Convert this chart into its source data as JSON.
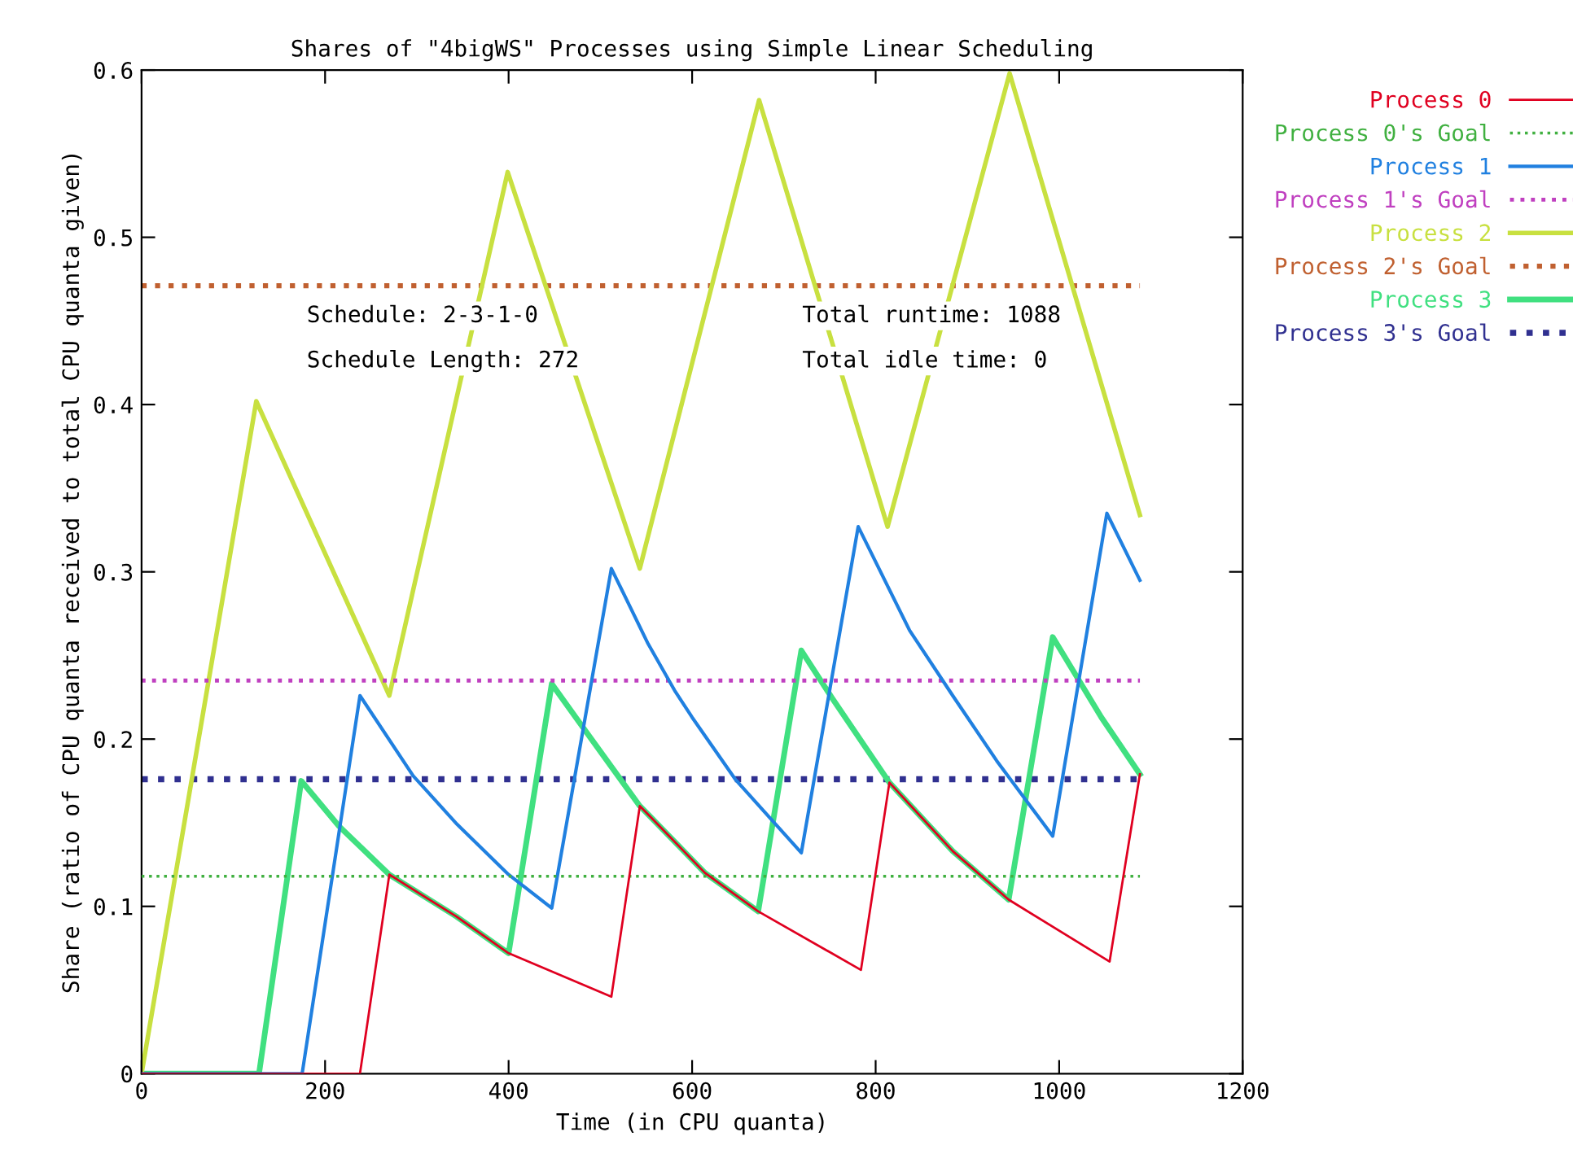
{
  "chart_data": {
    "type": "line",
    "title": "Shares of \"4bigWS\" Processes using Simple Linear Scheduling",
    "xlabel": "Time (in CPU quanta)",
    "ylabel": "Share (ratio of CPU quanta received to total CPU quanta given)",
    "xlim": [
      0,
      1200
    ],
    "xticks": [
      0,
      200,
      400,
      600,
      800,
      1000,
      1200
    ],
    "ylim": [
      0,
      0.6
    ],
    "yticks": [
      0,
      0.1,
      0.2,
      0.3,
      0.4,
      0.5,
      0.6
    ],
    "grid": false,
    "legend": "top right",
    "annotations": [
      "Schedule: 2-3-1-0",
      "Schedule Length: 272",
      "Total runtime: 1088",
      "Total idle time: 0"
    ],
    "series": [
      {
        "name": "Process 0",
        "color": "#e00020",
        "line_style": "solid",
        "x": [
          0,
          238,
          270,
          343,
          400,
          512,
          543,
          552,
          614,
          672,
          784,
          815,
          884,
          945,
          1055,
          1088
        ],
        "values": [
          0,
          0,
          0.119,
          0.094,
          0.072,
          0.046,
          0.16,
          0.155,
          0.12,
          0.097,
          0.062,
          0.174,
          0.133,
          0.104,
          0.067,
          0.179
        ]
      },
      {
        "name": "Process 0's Goal",
        "color": "#40b040",
        "line_style": "dotted",
        "x": [
          0,
          1088
        ],
        "values": [
          0.118,
          0.118
        ]
      },
      {
        "name": "Process 1",
        "color": "#2080e0",
        "line_style": "solid",
        "x": [
          0,
          175,
          238,
          296,
          344,
          400,
          447,
          512,
          552,
          581,
          600,
          647,
          719,
          781,
          837,
          884,
          932,
          993,
          1052,
          1088
        ],
        "values": [
          0,
          0,
          0.226,
          0.178,
          0.149,
          0.119,
          0.099,
          0.302,
          0.257,
          0.229,
          0.213,
          0.176,
          0.132,
          0.327,
          0.265,
          0.226,
          0.187,
          0.142,
          0.335,
          0.295
        ]
      },
      {
        "name": "Process 1's Goal",
        "color": "#c040c0",
        "line_style": "dotted",
        "x": [
          0,
          1088
        ],
        "values": [
          0.235,
          0.235
        ]
      },
      {
        "name": "Process 2",
        "color": "#c8e040",
        "line_style": "solid",
        "x": [
          0,
          125,
          270,
          399,
          543,
          673,
          813,
          946,
          1088
        ],
        "values": [
          0,
          0.402,
          0.226,
          0.539,
          0.302,
          0.582,
          0.327,
          0.598,
          0.334
        ]
      },
      {
        "name": "Process 2's Goal",
        "color": "#c06030",
        "line_style": "dotted",
        "x": [
          0,
          1088
        ],
        "values": [
          0.471,
          0.471
        ]
      },
      {
        "name": "Process 3",
        "color": "#40e080",
        "line_style": "solid",
        "x": [
          0,
          128,
          174,
          215,
          270,
          343,
          400,
          447,
          481,
          543,
          552,
          614,
          672,
          719,
          752,
          815,
          884,
          945,
          993,
          1046,
          1088
        ],
        "values": [
          0,
          0,
          0.175,
          0.148,
          0.119,
          0.094,
          0.072,
          0.233,
          0.207,
          0.16,
          0.155,
          0.12,
          0.097,
          0.253,
          0.225,
          0.174,
          0.133,
          0.104,
          0.261,
          0.213,
          0.179
        ]
      },
      {
        "name": "Process 3's Goal",
        "color": "#303090",
        "line_style": "dotted",
        "x": [
          0,
          1088
        ],
        "values": [
          0.176,
          0.176
        ]
      }
    ]
  }
}
